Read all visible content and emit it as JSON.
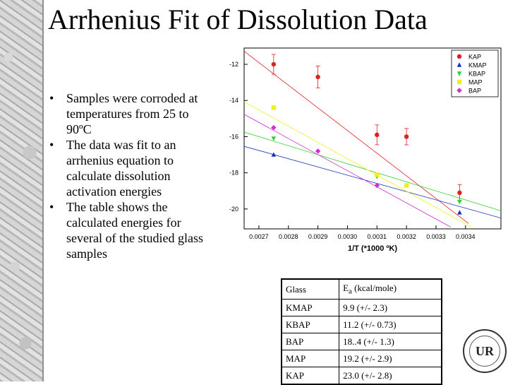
{
  "slide": {
    "title": "Arrhenius Fit of Dissolution Data",
    "bullets": [
      "Samples were corroded at temperatures from 25 to 90ºC",
      "The data was fit to an arrhenius equation to calculate dissolution activation energies",
      "The table shows the calculated energies for several of the studied glass samples"
    ],
    "bullet_char": "•"
  },
  "chart_data": {
    "type": "scatter",
    "title": "",
    "xlabel": "1/T (*1000 ºK)",
    "ylabel": "",
    "xlim": [
      0.00265,
      0.00352
    ],
    "ylim": [
      -21.1,
      -11.1
    ],
    "xticks": [
      0.0027,
      0.0028,
      0.0029,
      0.003,
      0.0031,
      0.0032,
      0.0033,
      0.0034
    ],
    "xtick_labels": [
      "0.0027",
      "0.0028",
      "0.0029",
      "0.0030",
      "0.0031",
      "0.0032",
      "0.0033",
      "0.0034"
    ],
    "yticks": [
      -12,
      -14,
      -16,
      -18,
      -20
    ],
    "ytick_labels": [
      "-12",
      "-14",
      "-16",
      "-18",
      "-20"
    ],
    "legend_position": "top-right",
    "series": [
      {
        "name": "KAP",
        "color": "#e02020",
        "marker": "circle",
        "points": [
          [
            0.00275,
            -12.0
          ],
          [
            0.0029,
            -12.7
          ],
          [
            0.0031,
            -15.9
          ],
          [
            0.0032,
            -16.0
          ],
          [
            0.00338,
            -19.1
          ]
        ],
        "errors": [
          0.55,
          0.6,
          0.55,
          0.45,
          0.45
        ],
        "fit": [
          [
            0.00262,
            -10.9
          ],
          [
            0.00341,
            -20.8
          ]
        ]
      },
      {
        "name": "KMAP",
        "color": "#1030c0",
        "marker": "triangle-up",
        "points": [
          [
            0.00275,
            -17.0
          ],
          [
            0.00338,
            -20.2
          ]
        ],
        "fit": [
          [
            0.00262,
            -16.4
          ],
          [
            0.00352,
            -20.5
          ]
        ]
      },
      {
        "name": "KBAP",
        "color": "#30d030",
        "marker": "triangle-down",
        "points": [
          [
            0.00275,
            -16.1
          ],
          [
            0.0031,
            -18.2
          ],
          [
            0.00338,
            -19.6
          ]
        ],
        "fit": [
          [
            0.00262,
            -15.6
          ],
          [
            0.00352,
            -20.1
          ]
        ]
      },
      {
        "name": "MAP",
        "color": "#f0f020",
        "marker": "square",
        "points": [
          [
            0.00275,
            -14.4
          ],
          [
            0.0031,
            -18.1
          ],
          [
            0.0032,
            -18.7
          ]
        ],
        "fit": [
          [
            0.00262,
            -13.8
          ],
          [
            0.00342,
            -21.0
          ]
        ]
      },
      {
        "name": "BAP",
        "color": "#d030d0",
        "marker": "diamond",
        "points": [
          [
            0.00275,
            -15.5
          ],
          [
            0.0029,
            -16.8
          ],
          [
            0.0031,
            -18.7
          ]
        ],
        "fit": [
          [
            0.00262,
            -14.5
          ],
          [
            0.00335,
            -21.0
          ]
        ]
      }
    ]
  },
  "energy_table": {
    "headers": [
      "Glass",
      "Ea (kcal/mole)"
    ],
    "header_ea_main": "E",
    "header_ea_sub": "a",
    "header_ea_unit": " (kcal/mole)",
    "rows": [
      [
        "KMAP",
        "9.9 (+/- 2.3)"
      ],
      [
        "KBAP",
        "11.2 (+/- 0.73)"
      ],
      [
        "BAP",
        "18..4 (+/- 1.3)"
      ],
      [
        "MAP",
        "19.2 (+/- 2.9)"
      ],
      [
        "KAP",
        "23.0 (+/- 2.8)"
      ]
    ]
  },
  "seal": {
    "monogram": "UR"
  }
}
